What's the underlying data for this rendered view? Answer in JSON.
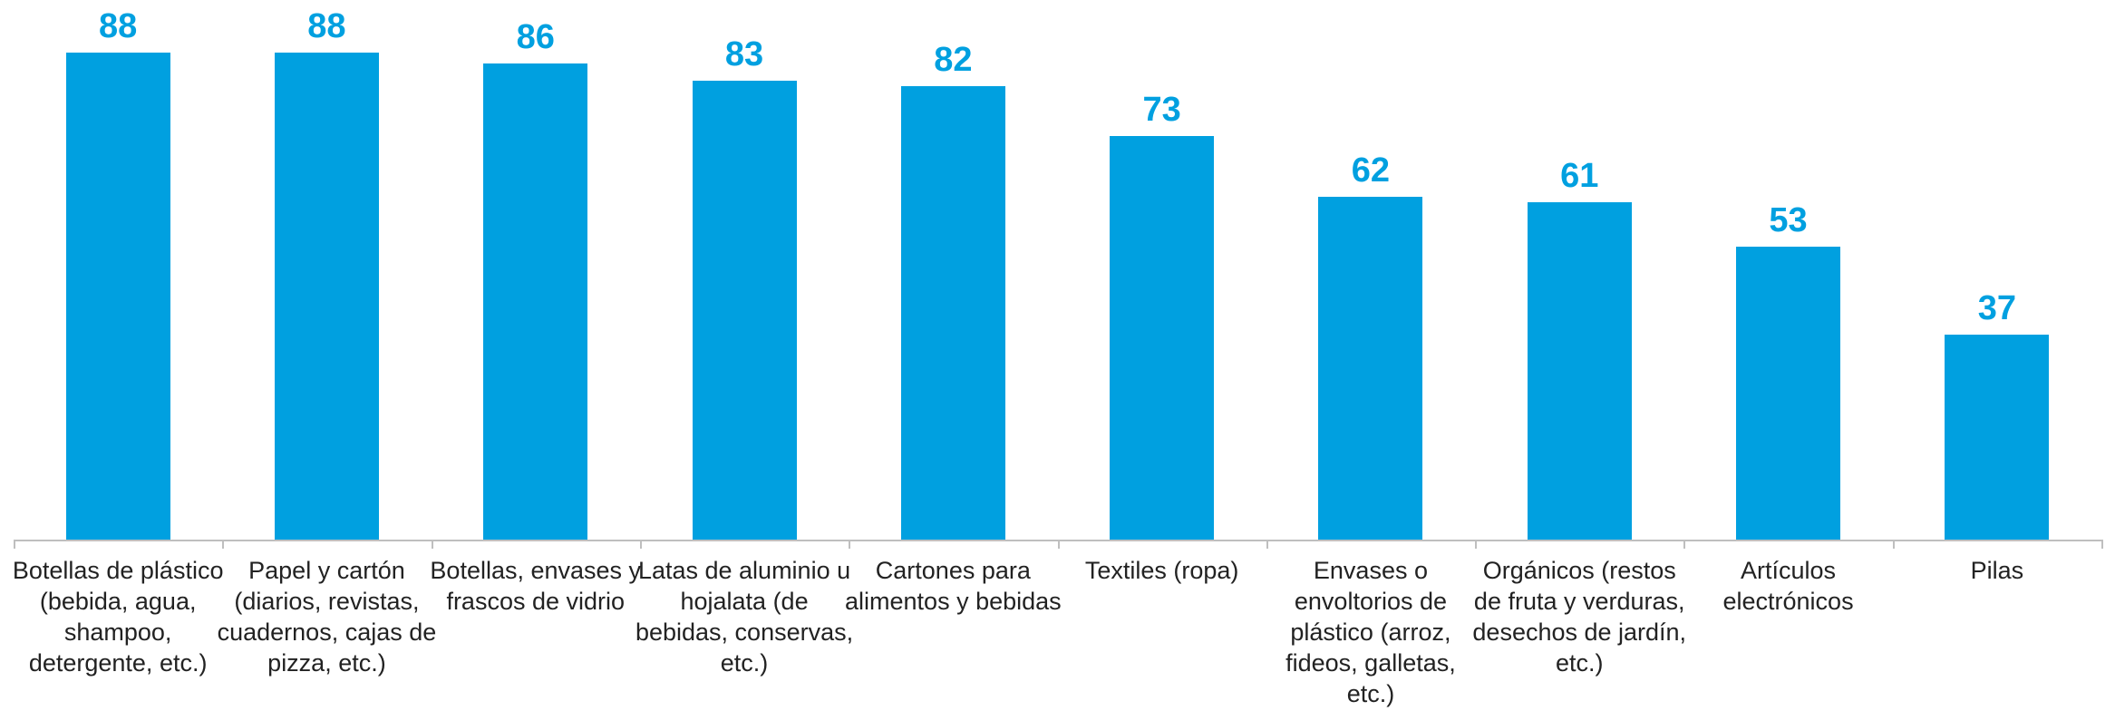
{
  "chart_data": {
    "type": "bar",
    "categories": [
      "Botellas de plástico (bebida, agua, shampoo, detergente, etc.)",
      "Papel y cartón (diarios, revistas, cuadernos, cajas de pizza, etc.)",
      "Botellas, envases y frascos de vidrio",
      "Latas de aluminio u hojalata (de bebidas, conservas, etc.)",
      "Cartones para alimentos y bebidas",
      "Textiles (ropa)",
      "Envases o envoltorios de plástico (arroz, fideos, galletas, etc.)",
      "Orgánicos (restos de fruta y verduras, desechos de jardín, etc.)",
      "Artículos electrónicos",
      "Pilas"
    ],
    "values": [
      88,
      88,
      86,
      83,
      82,
      73,
      62,
      61,
      53,
      37
    ],
    "color": "#00a0e0"
  }
}
